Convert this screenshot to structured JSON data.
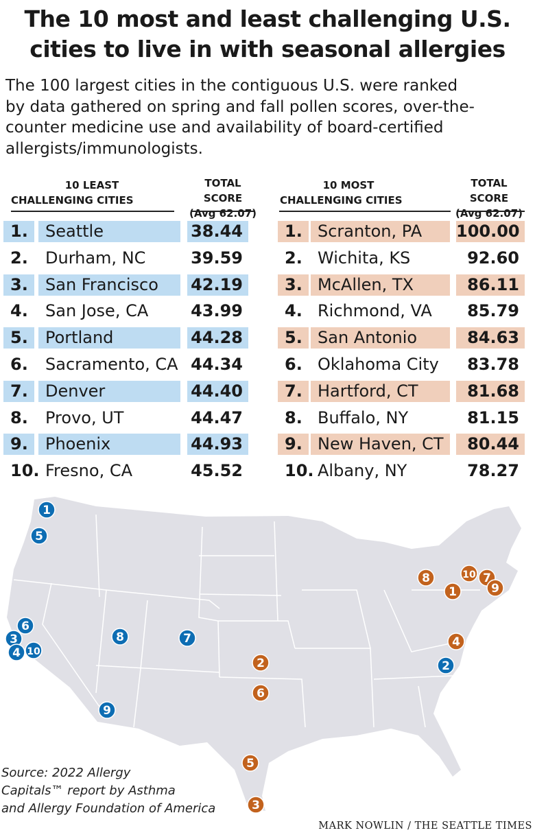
{
  "title_lines": [
    "The 10 most and least challenging U.S.",
    "cities to live in with seasonal allergies"
  ],
  "subtitle_lines": [
    "The 100 largest cities in the contiguous U.S. were ranked",
    "by data gathered on spring and fall pollen scores, over-the-",
    "counter medicine use and availability of board-certified",
    "allergists/immunologists."
  ],
  "colors": {
    "least": "#0d6db3",
    "most": "#c2621d",
    "least_highlight": "#bedcf2",
    "most_highlight": "#f0cfbb",
    "map_land": "#e0e0e6"
  },
  "chart_data": {
    "type": "table",
    "tables": [
      {
        "header_lines": [
          "10 LEAST",
          "CHALLENGING CITIES"
        ],
        "score_header": "TOTAL SCORE",
        "score_sub": "(Avg 62.07)",
        "rows": [
          {
            "rank": "1.",
            "city": "Seattle",
            "score": "38.44"
          },
          {
            "rank": "2.",
            "city": "Durham, NC",
            "score": "39.59"
          },
          {
            "rank": "3.",
            "city": "San Francisco",
            "score": "42.19"
          },
          {
            "rank": "4.",
            "city": "San Jose, CA",
            "score": "43.99"
          },
          {
            "rank": "5.",
            "city": "Portland",
            "score": "44.28"
          },
          {
            "rank": "6.",
            "city": "Sacramento, CA",
            "score": "44.34"
          },
          {
            "rank": "7.",
            "city": "Denver",
            "score": "44.40"
          },
          {
            "rank": "8.",
            "city": "Provo, UT",
            "score": "44.47"
          },
          {
            "rank": "9.",
            "city": "Phoenix",
            "score": "44.93"
          },
          {
            "rank": "10.",
            "city": "Fresno, CA",
            "score": "45.52"
          }
        ]
      },
      {
        "header_lines": [
          "10 MOST",
          "CHALLENGING CITIES"
        ],
        "score_header": "TOTAL SCORE",
        "score_sub": "(Avg 62.07)",
        "rows": [
          {
            "rank": "1.",
            "city": "Scranton, PA",
            "score": "100.00"
          },
          {
            "rank": "2.",
            "city": "Wichita, KS",
            "score": "92.60"
          },
          {
            "rank": "3.",
            "city": "McAllen, TX",
            "score": "86.11"
          },
          {
            "rank": "4.",
            "city": "Richmond, VA",
            "score": "85.79"
          },
          {
            "rank": "5.",
            "city": "San Antonio",
            "score": "84.63"
          },
          {
            "rank": "6.",
            "city": "Oklahoma City",
            "score": "83.78"
          },
          {
            "rank": "7.",
            "city": "Hartford, CT",
            "score": "81.68"
          },
          {
            "rank": "8.",
            "city": "Buffalo, NY",
            "score": "81.15"
          },
          {
            "rank": "9.",
            "city": "New Haven, CT",
            "score": "80.44"
          },
          {
            "rank": "10.",
            "city": "Albany, NY",
            "score": "78.27"
          }
        ]
      }
    ]
  },
  "map": {
    "least_markers": [
      "1",
      "2",
      "3",
      "4",
      "5",
      "6",
      "7",
      "8",
      "9",
      "10"
    ],
    "most_markers": [
      "1",
      "2",
      "3",
      "4",
      "5",
      "6",
      "7",
      "8",
      "9",
      "10"
    ]
  },
  "source_lines": [
    "Source: 2022 Allergy",
    "Capitals™ report by Asthma",
    "and Allergy Foundation of America"
  ],
  "credit": "MARK NOWLIN / THE SEATTLE TIMES"
}
